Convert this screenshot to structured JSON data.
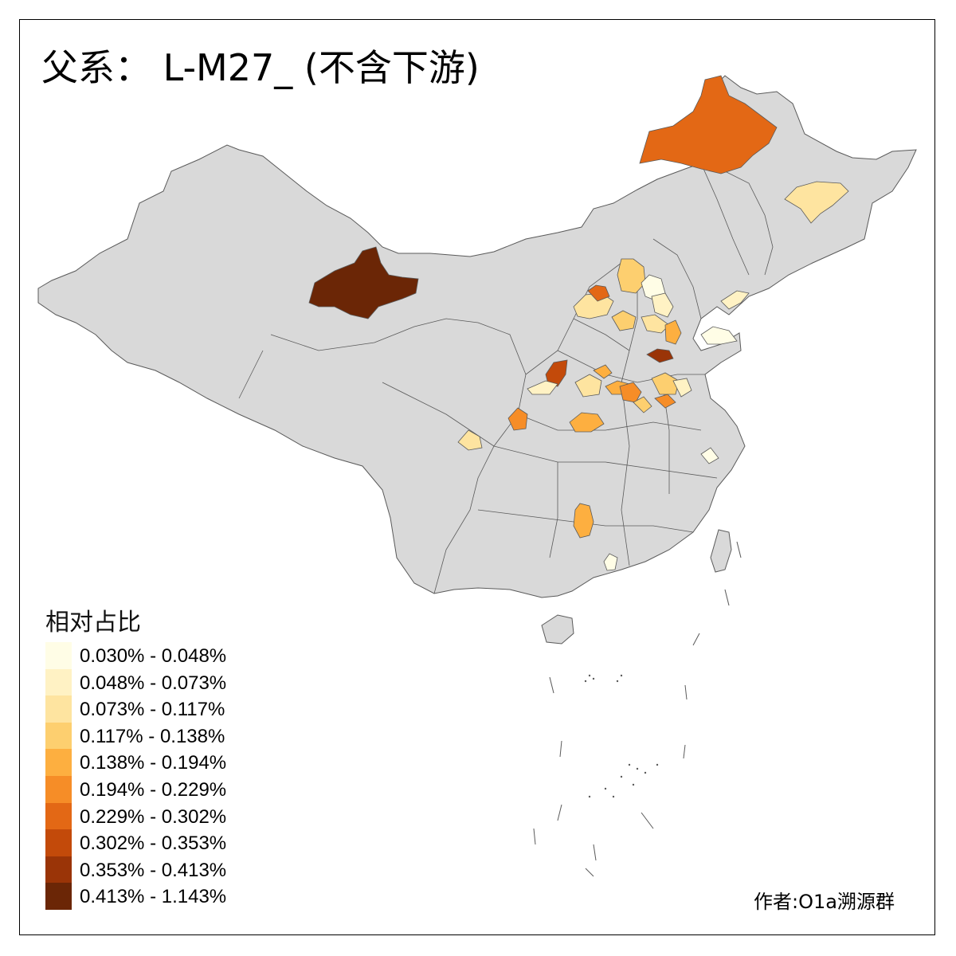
{
  "title": "父系： L-M27_ (不含下游)",
  "legend": {
    "title": "相对占比",
    "bins": [
      {
        "label": "0.030% - 0.048%",
        "color": "#fffde6"
      },
      {
        "label": "0.048% - 0.073%",
        "color": "#fff2c4"
      },
      {
        "label": "0.073% - 0.117%",
        "color": "#fee4a0"
      },
      {
        "label": "0.117% - 0.138%",
        "color": "#fdcf6f"
      },
      {
        "label": "0.138% - 0.194%",
        "color": "#fdaf40"
      },
      {
        "label": "0.194% - 0.229%",
        "color": "#f68d27"
      },
      {
        "label": "0.229% - 0.302%",
        "color": "#e36815"
      },
      {
        "label": "0.302% - 0.353%",
        "color": "#c34a0a"
      },
      {
        "label": "0.353% - 0.413%",
        "color": "#9a3407"
      },
      {
        "label": "0.413% - 1.143%",
        "color": "#6b2606"
      }
    ]
  },
  "credit": "作者:O1a溯源群",
  "map_colors": {
    "base": "#d9d9d9",
    "border": "#5a5a5a",
    "background": "#ffffff"
  }
}
